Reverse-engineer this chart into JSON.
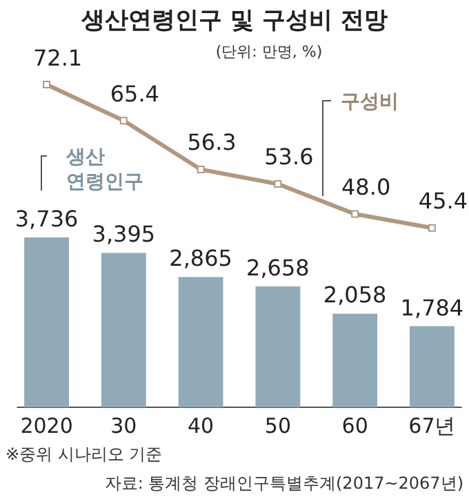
{
  "chart_data": {
    "type": "bar",
    "title": "생산연령인구 및 구성비 전망",
    "subtitle": "(단위: 만명, %)",
    "categories": [
      "2020",
      "30",
      "40",
      "50",
      "60",
      "67년"
    ],
    "series": [
      {
        "name": "생산 연령인구",
        "type": "bar",
        "color": "#90aab8",
        "values": [
          3736,
          3395,
          2865,
          2658,
          2058,
          1784
        ],
        "value_labels": [
          "3,736",
          "3,395",
          "2,865",
          "2,658",
          "2,058",
          "1,784"
        ]
      },
      {
        "name": "구성비",
        "type": "line",
        "axis": "y2",
        "color": "#b09880",
        "marker": "square",
        "values": [
          72.1,
          65.4,
          56.3,
          53.6,
          48.0,
          45.4
        ],
        "value_labels": [
          "72.1",
          "65.4",
          "56.3",
          "53.6",
          "48.0",
          "45.4"
        ]
      }
    ],
    "ylim": [
      0,
      7440
    ],
    "y2lim": [
      12,
      75
    ],
    "tick_labels": "x",
    "legend": false,
    "annotations": [
      "※중위 시나리오 기준",
      "자료: 통계청 장래인구특별추계(2017~2067년)"
    ]
  }
}
